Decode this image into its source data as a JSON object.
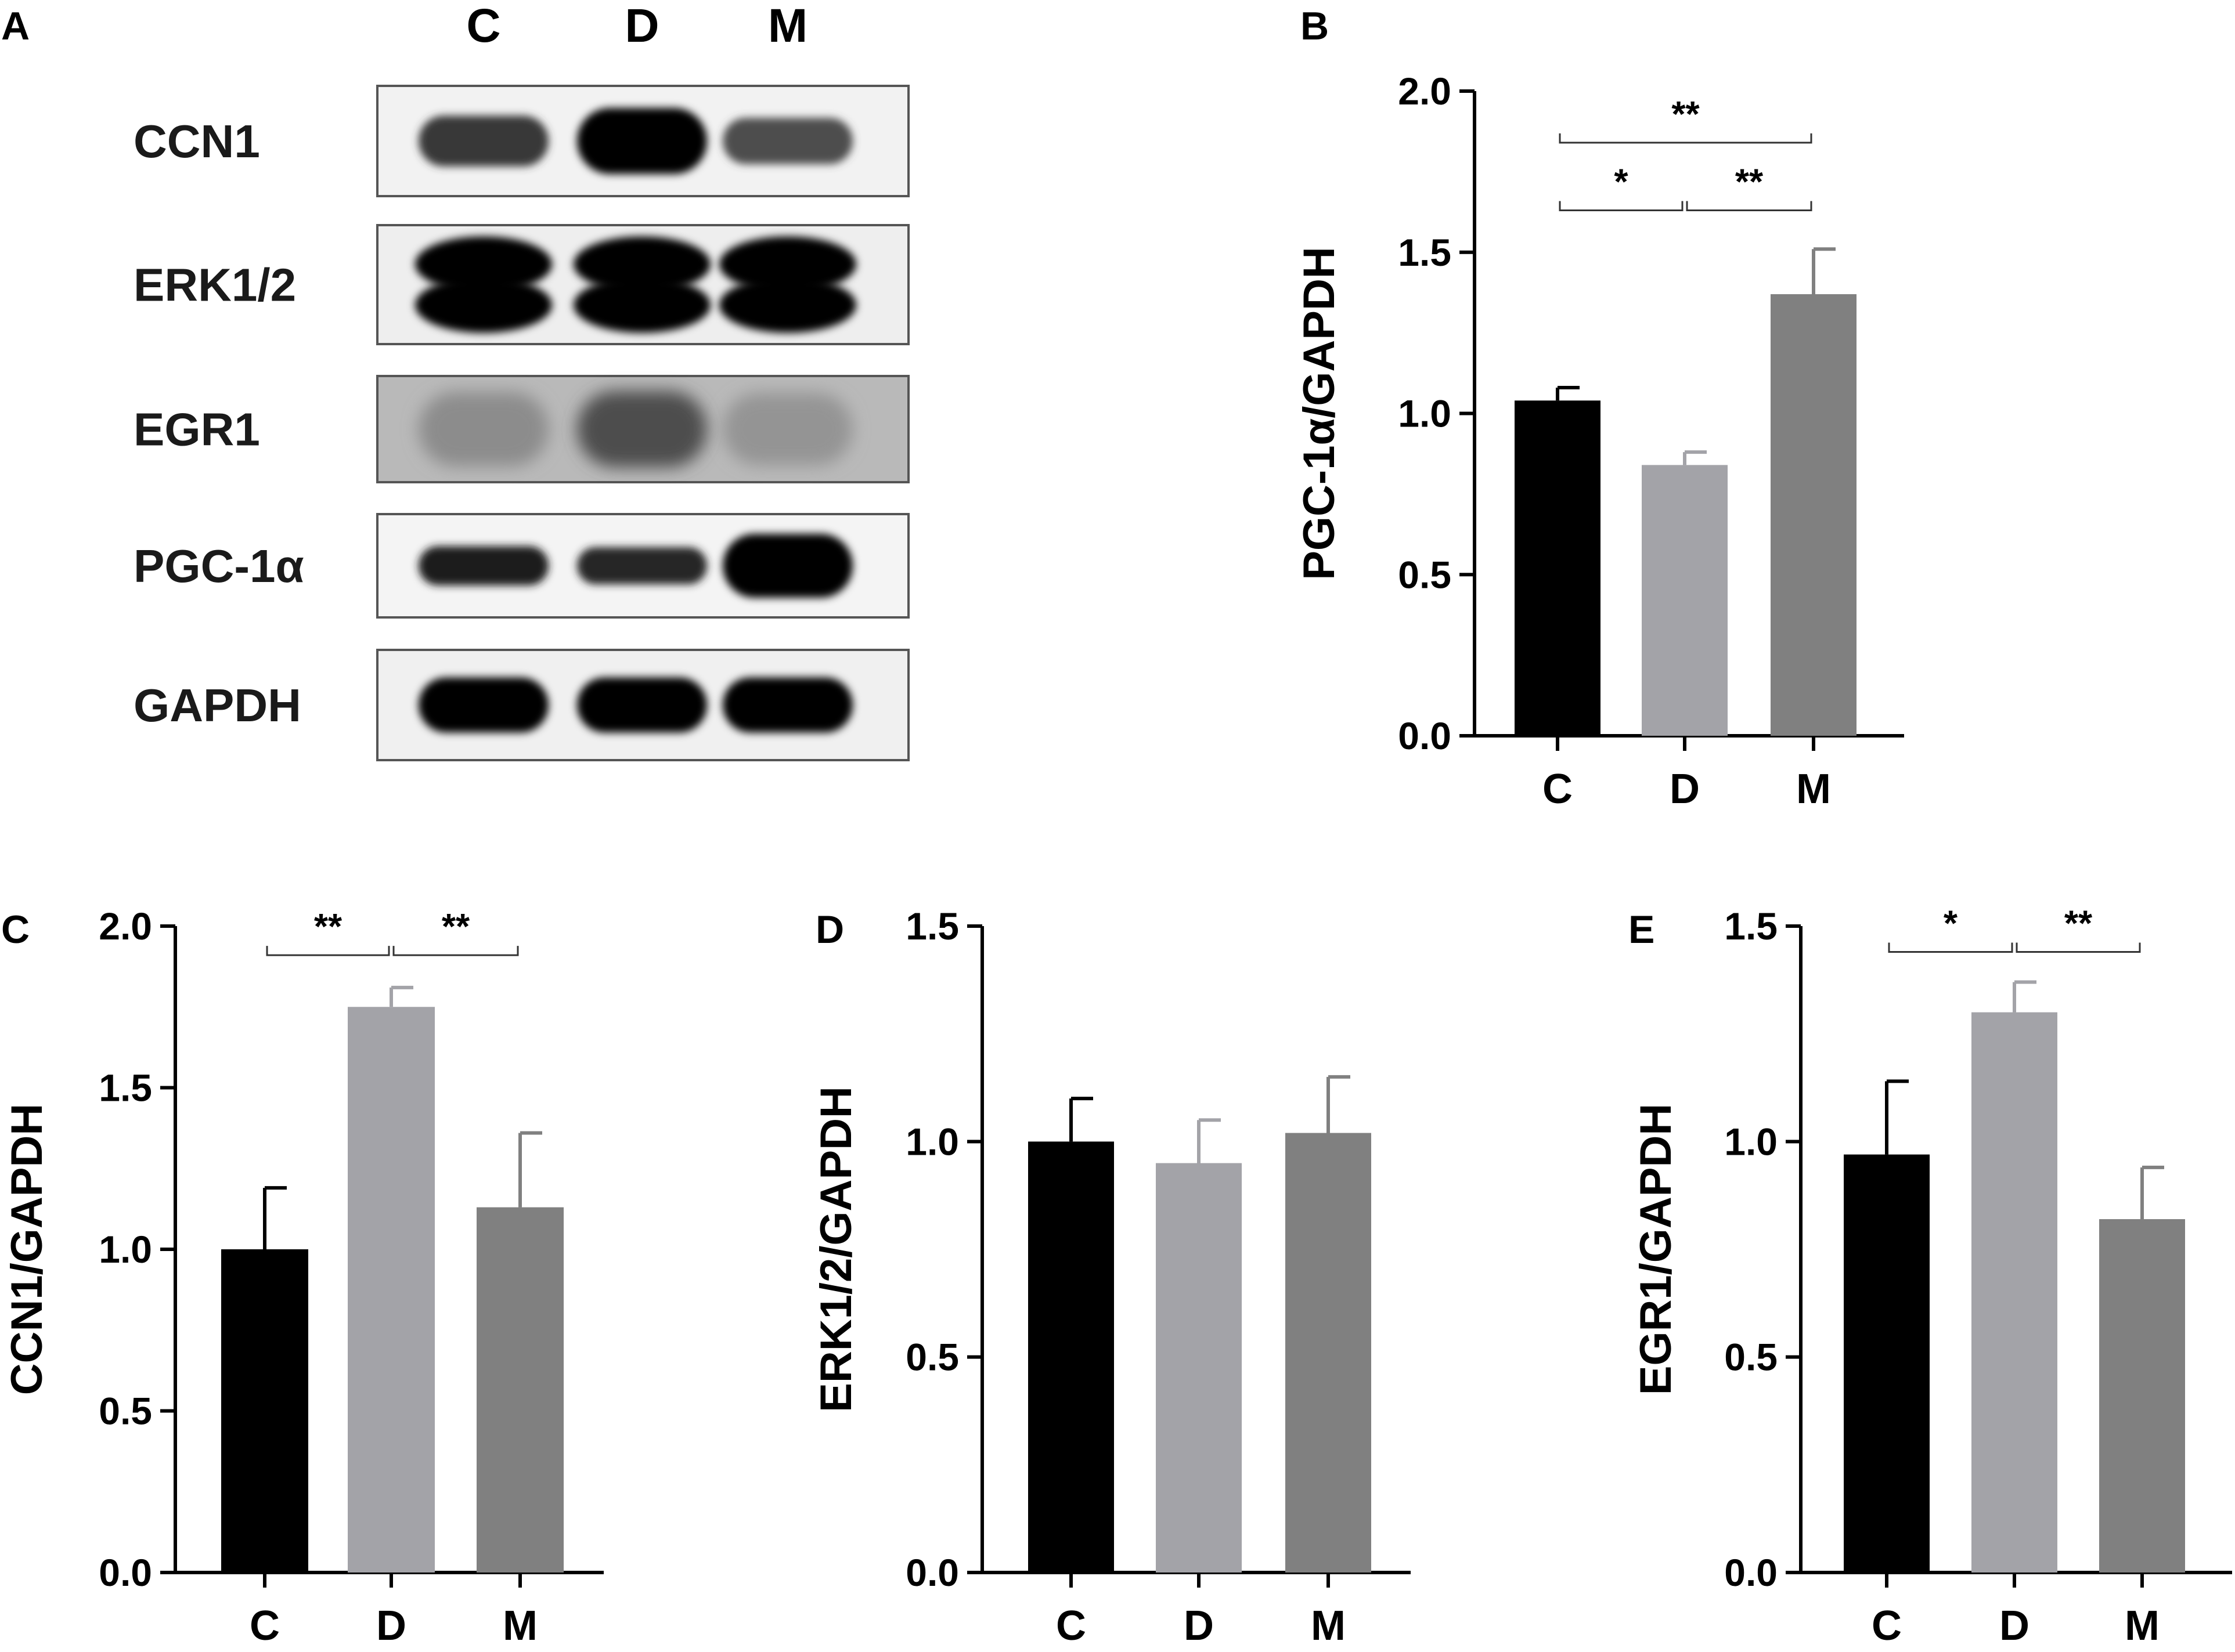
{
  "panel_a": {
    "letter": "A",
    "lanes": [
      "C",
      "D",
      "M"
    ],
    "blots": [
      {
        "protein": "CCN1",
        "band_intensity": [
          0.78,
          0.98,
          0.7
        ],
        "band_thickness": [
          0.46,
          0.6,
          0.42
        ],
        "background": "#f2f2f2",
        "doublet": false
      },
      {
        "protein": "ERK1/2",
        "band_intensity": [
          1.0,
          1.0,
          1.0
        ],
        "band_thickness": [
          0.78,
          0.78,
          0.78
        ],
        "background": "#eeeeee",
        "doublet": true
      },
      {
        "protein": "EGR1",
        "band_intensity": [
          0.45,
          0.7,
          0.42
        ],
        "band_thickness": [
          0.7,
          0.72,
          0.68
        ],
        "background": "#b9b9b9",
        "doublet": false
      },
      {
        "protein": "PGC-1α",
        "band_intensity": [
          0.88,
          0.85,
          1.0
        ],
        "band_thickness": [
          0.38,
          0.36,
          0.62
        ],
        "background": "#f4f4f4",
        "doublet": false
      },
      {
        "protein": "GAPDH",
        "band_intensity": [
          1.0,
          1.0,
          1.0
        ],
        "band_thickness": [
          0.5,
          0.5,
          0.5
        ],
        "background": "#f0f0f0",
        "doublet": false
      }
    ]
  },
  "colors": {
    "C": "#000000",
    "D": "#a3a3a8",
    "M": "#808080",
    "axis": "#000000"
  },
  "chart_data": [
    {
      "panel": "B",
      "type": "bar",
      "categories": [
        "C",
        "D",
        "M"
      ],
      "values": [
        1.04,
        0.84,
        1.37
      ],
      "errors": [
        0.04,
        0.04,
        0.14
      ],
      "ylabel": "PGC-1α/GAPDH",
      "ylim": [
        0,
        2.0
      ],
      "yticks": [
        "0.0",
        "0.5",
        "1.0",
        "1.5",
        "2.0"
      ],
      "significance": [
        {
          "from": "C",
          "to": "D",
          "label": "*",
          "level": 1.63
        },
        {
          "from": "D",
          "to": "M",
          "label": "**",
          "level": 1.63
        },
        {
          "from": "C",
          "to": "M",
          "label": "**",
          "level": 1.84
        }
      ]
    },
    {
      "panel": "C",
      "type": "bar",
      "categories": [
        "C",
        "D",
        "M"
      ],
      "values": [
        1.0,
        1.75,
        1.13
      ],
      "errors": [
        0.19,
        0.06,
        0.23
      ],
      "ylabel": "CCN1/GAPDH",
      "ylim": [
        0,
        2.0
      ],
      "yticks": [
        "0.0",
        "0.5",
        "1.0",
        "1.5",
        "2.0"
      ],
      "significance": [
        {
          "from": "C",
          "to": "D",
          "label": "**",
          "level": 1.91
        },
        {
          "from": "D",
          "to": "M",
          "label": "**",
          "level": 1.91
        }
      ]
    },
    {
      "panel": "D",
      "type": "bar",
      "categories": [
        "C",
        "D",
        "M"
      ],
      "values": [
        1.0,
        0.95,
        1.02
      ],
      "errors": [
        0.1,
        0.1,
        0.13
      ],
      "ylabel": "ERK1/2/GAPDH",
      "ylim": [
        0,
        1.5
      ],
      "yticks": [
        "0.0",
        "0.5",
        "1.0",
        "1.5"
      ],
      "significance": []
    },
    {
      "panel": "E",
      "type": "bar",
      "categories": [
        "C",
        "D",
        "M"
      ],
      "values": [
        0.97,
        1.3,
        0.82
      ],
      "errors": [
        0.17,
        0.07,
        0.12
      ],
      "ylabel": "EGR1/GAPDH",
      "ylim": [
        0,
        1.5
      ],
      "yticks": [
        "0.0",
        "0.5",
        "1.0",
        "1.5"
      ],
      "significance": [
        {
          "from": "C",
          "to": "D",
          "label": "*",
          "level": 1.44
        },
        {
          "from": "D",
          "to": "M",
          "label": "**",
          "level": 1.44
        }
      ]
    }
  ]
}
